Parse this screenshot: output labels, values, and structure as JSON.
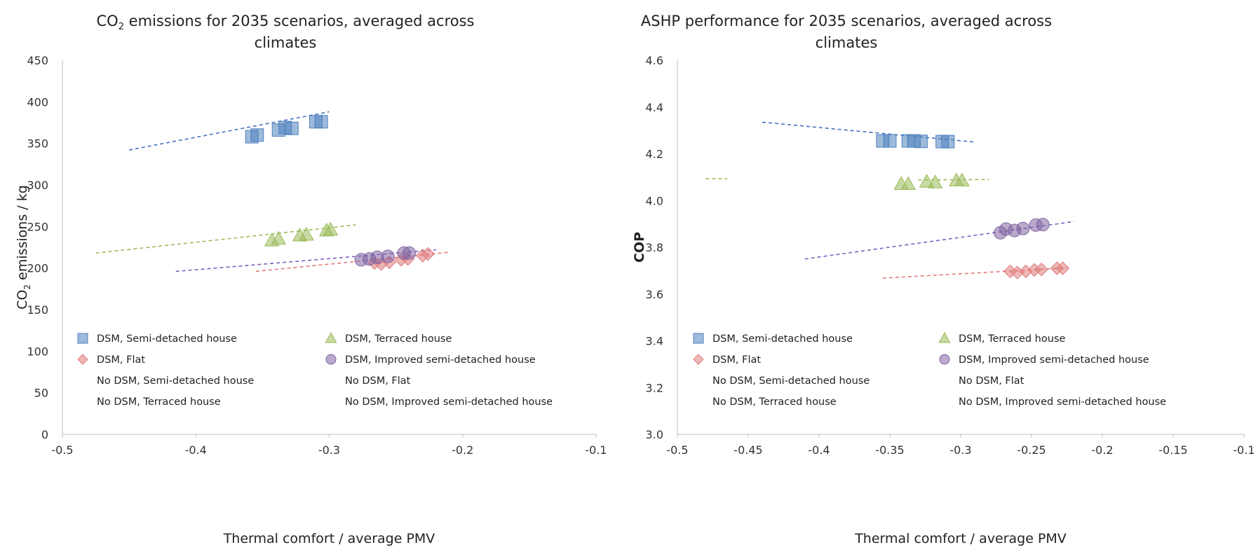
{
  "chart_data": [
    {
      "type": "scatter",
      "title_parts": [
        "CO",
        "2",
        " emissions for 2035 scenarios, averaged across"
      ],
      "title_line2": "climates",
      "xlabel": "Thermal comfort / average PMV",
      "ylabel_parts": [
        "CO",
        "2",
        " emissions / kg"
      ],
      "xlim": [
        -0.5,
        -0.1
      ],
      "ylim": [
        0,
        450
      ],
      "xticks": [
        -0.5,
        -0.4,
        -0.3,
        -0.2,
        -0.1
      ],
      "yticks": [
        0,
        50,
        100,
        150,
        200,
        250,
        300,
        350,
        400,
        450
      ],
      "xtick_labels": [
        "-0.5",
        "-0.4",
        "-0.3",
        "-0.2",
        "-0.1"
      ],
      "ytick_labels": [
        "0",
        "50",
        "100",
        "150",
        "200",
        "250",
        "300",
        "350",
        "400",
        "450"
      ],
      "grid": false,
      "legend": "bottom",
      "series": [
        {
          "name": "DSM, Semi-detached house",
          "marker": "square",
          "color": "#4f81bd",
          "points": [
            [
              -0.358,
              358
            ],
            [
              -0.354,
              360
            ],
            [
              -0.338,
              366
            ],
            [
              -0.333,
              369
            ],
            [
              -0.328,
              368
            ],
            [
              -0.31,
              376
            ],
            [
              -0.306,
              376
            ]
          ]
        },
        {
          "name": "DSM, Terraced house",
          "marker": "triangle",
          "color": "#9bbb59",
          "points": [
            [
              -0.343,
              233
            ],
            [
              -0.338,
              235
            ],
            [
              -0.322,
              239
            ],
            [
              -0.317,
              240
            ],
            [
              -0.302,
              245
            ],
            [
              -0.299,
              246
            ]
          ]
        },
        {
          "name": "DSM, Flat",
          "marker": "diamond",
          "color": "#e07b7b",
          "points": [
            [
              -0.266,
              206
            ],
            [
              -0.261,
              205
            ],
            [
              -0.255,
              207
            ],
            [
              -0.246,
              210
            ],
            [
              -0.241,
              211
            ],
            [
              -0.23,
              215
            ],
            [
              -0.226,
              217
            ]
          ]
        },
        {
          "name": "DSM, Improved semi-detached house",
          "marker": "circle",
          "color": "#8064a2",
          "points": [
            [
              -0.276,
              210
            ],
            [
              -0.27,
              211
            ],
            [
              -0.264,
              213
            ],
            [
              -0.256,
              214
            ],
            [
              -0.244,
              218
            ],
            [
              -0.24,
              218
            ]
          ]
        }
      ],
      "no_dsm_entries": [
        "No DSM, Semi-detached house",
        "No DSM, Flat",
        "No DSM, Terraced house",
        "No DSM, Improved semi-detached house"
      ],
      "trendlines": [
        {
          "color": "#4472c4",
          "from": [
            -0.45,
            342
          ],
          "to": [
            -0.3,
            388
          ]
        },
        {
          "color": "#9bbb59",
          "from": [
            -0.475,
            218
          ],
          "to": [
            -0.28,
            252
          ]
        },
        {
          "color": "#7f5fc0",
          "from": [
            -0.415,
            196
          ],
          "to": [
            -0.22,
            222
          ]
        },
        {
          "color": "#e07b7b",
          "from": [
            -0.355,
            196
          ],
          "to": [
            -0.21,
            219
          ]
        }
      ]
    },
    {
      "type": "scatter",
      "title": "ASHP performance for 2035 scenarios, averaged across",
      "title_line2": "climates",
      "xlabel": "Thermal comfort / average PMV",
      "ylabel": "COP",
      "xlim": [
        -0.5,
        -0.1
      ],
      "ylim": [
        3.0,
        4.6
      ],
      "xticks": [
        -0.5,
        -0.45,
        -0.4,
        -0.35,
        -0.3,
        -0.25,
        -0.2,
        -0.15,
        -0.1
      ],
      "yticks": [
        3.0,
        3.2,
        3.4,
        3.6,
        3.8,
        4.0,
        4.2,
        4.4,
        4.6
      ],
      "xtick_labels": [
        "-0.5",
        "-0.45",
        "-0.4",
        "-0.35",
        "-0.3",
        "-0.25",
        "-0.2",
        "-0.15",
        "-0.1"
      ],
      "ytick_labels": [
        "3.0",
        "3.2",
        "3.4",
        "3.6",
        "3.8",
        "4.0",
        "4.2",
        "4.4",
        "4.6"
      ],
      "grid": false,
      "legend": "bottom",
      "series": [
        {
          "name": "DSM, Semi-detached house",
          "marker": "square",
          "color": "#4f81bd",
          "points": [
            [
              -0.355,
              4.255
            ],
            [
              -0.35,
              4.255
            ],
            [
              -0.337,
              4.255
            ],
            [
              -0.333,
              4.255
            ],
            [
              -0.328,
              4.253
            ],
            [
              -0.313,
              4.252
            ],
            [
              -0.309,
              4.252
            ]
          ]
        },
        {
          "name": "DSM, Terraced house",
          "marker": "triangle",
          "color": "#9bbb59",
          "points": [
            [
              -0.342,
              4.07
            ],
            [
              -0.337,
              4.07
            ],
            [
              -0.324,
              4.08
            ],
            [
              -0.318,
              4.077
            ],
            [
              -0.303,
              4.085
            ],
            [
              -0.299,
              4.085
            ]
          ]
        },
        {
          "name": "DSM, Flat",
          "marker": "diamond",
          "color": "#e07b7b",
          "points": [
            [
              -0.265,
              3.697
            ],
            [
              -0.26,
              3.692
            ],
            [
              -0.254,
              3.697
            ],
            [
              -0.248,
              3.703
            ],
            [
              -0.243,
              3.705
            ],
            [
              -0.232,
              3.71
            ],
            [
              -0.228,
              3.71
            ]
          ]
        },
        {
          "name": "DSM, Improved semi-detached house",
          "marker": "circle",
          "color": "#8064a2",
          "points": [
            [
              -0.272,
              3.862
            ],
            [
              -0.268,
              3.878
            ],
            [
              -0.262,
              3.872
            ],
            [
              -0.256,
              3.88
            ],
            [
              -0.247,
              3.895
            ],
            [
              -0.242,
              3.897
            ]
          ]
        }
      ],
      "no_dsm_entries": [
        "No DSM, Semi-detached house",
        "No DSM, Flat",
        "No DSM, Terraced house",
        "No DSM, Improved semi-detached house"
      ],
      "trendlines": [
        {
          "color": "#4472c4",
          "from": [
            -0.44,
            4.335
          ],
          "to": [
            -0.29,
            4.25
          ]
        },
        {
          "color": "#9bbb59",
          "from": [
            -0.48,
            4.093
          ],
          "to": [
            -0.465,
            4.093
          ]
        },
        {
          "color": "#9bbb59",
          "from": [
            -0.33,
            4.088
          ],
          "to": [
            -0.28,
            4.09
          ]
        },
        {
          "color": "#7f5fc0",
          "from": [
            -0.41,
            3.75
          ],
          "to": [
            -0.22,
            3.91
          ]
        },
        {
          "color": "#e07b7b",
          "from": [
            -0.355,
            3.668
          ],
          "to": [
            -0.225,
            3.712
          ]
        }
      ]
    }
  ]
}
